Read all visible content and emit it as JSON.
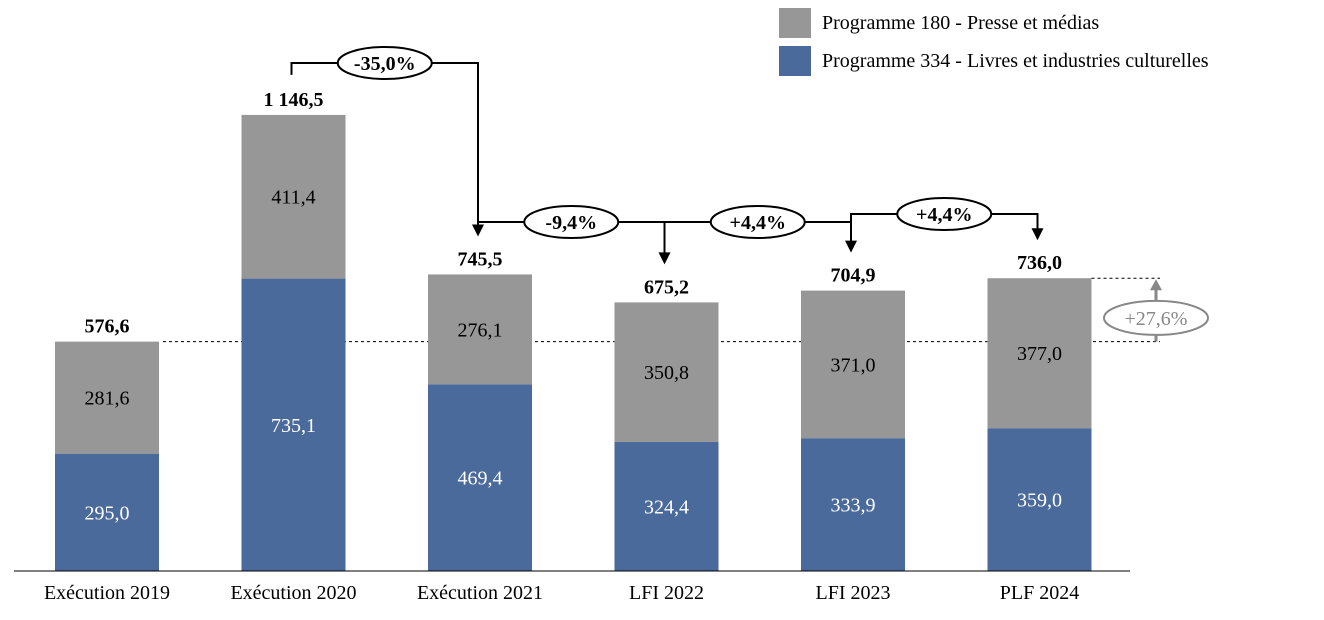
{
  "chart_data": {
    "type": "bar",
    "stacked": true,
    "categories": [
      "Exécution 2019",
      "Exécution 2020",
      "Exécution 2021",
      "LFI 2022",
      "LFI 2023",
      "PLF 2024"
    ],
    "series": [
      {
        "name": "Programme 334 - Livres et industries culturelles",
        "color": "#4a6a9b",
        "values": [
          295.0,
          735.1,
          469.4,
          324.4,
          333.9,
          359.0
        ],
        "labels": [
          "295,0",
          "735,1",
          "469,4",
          "324,4",
          "333,9",
          "359,0"
        ]
      },
      {
        "name": "Programme 180 - Presse et médias",
        "color": "#979797",
        "values": [
          281.6,
          411.4,
          276.1,
          350.8,
          371.0,
          377.0
        ],
        "labels": [
          "281,6",
          "411,4",
          "276,1",
          "350,8",
          "371,0",
          "377,0"
        ]
      }
    ],
    "totals": [
      576.6,
      1146.5,
      745.5,
      675.2,
      704.9,
      736.0
    ],
    "total_labels": [
      "576,6",
      "1 146,5",
      "745,5",
      "675,2",
      "704,9",
      "736,0"
    ],
    "ylim": [
      0,
      1200
    ],
    "legend_position": "top-right",
    "grid": false,
    "annotations": {
      "changes": [
        {
          "from": 1,
          "to": 2,
          "label": "-35,0%"
        },
        {
          "from": 2,
          "to": 3,
          "label": "-9,4%"
        },
        {
          "from": 3,
          "to": 4,
          "label": "+4,4%"
        },
        {
          "from": 4,
          "to": 5,
          "label": "+4,4%"
        }
      ],
      "overall": {
        "from": 0,
        "to": 5,
        "label": "+27,6%"
      }
    }
  }
}
